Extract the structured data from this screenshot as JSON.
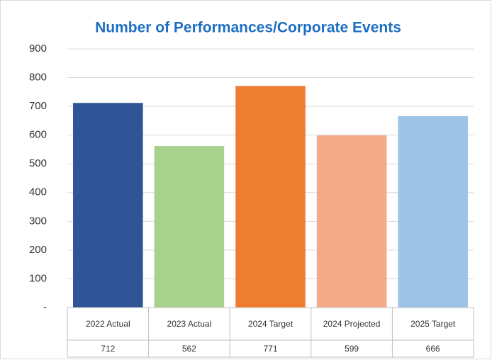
{
  "chart_data": {
    "type": "bar",
    "title": "Number of Performances/Corporate Events",
    "categories": [
      "2022 Actual",
      "2023 Actual",
      "2024 Target",
      "2024 Projected",
      "2025 Target"
    ],
    "values": [
      712,
      562,
      771,
      599,
      666
    ],
    "colors": [
      "#2f5597",
      "#a9d18e",
      "#ed7d31",
      "#f4a988",
      "#9dc3e6"
    ],
    "ylim": [
      0,
      900
    ],
    "yticks": [
      {
        "value": 0,
        "label": "-"
      },
      100,
      200,
      300,
      400,
      500,
      600,
      700,
      800,
      900
    ],
    "grid": true
  }
}
